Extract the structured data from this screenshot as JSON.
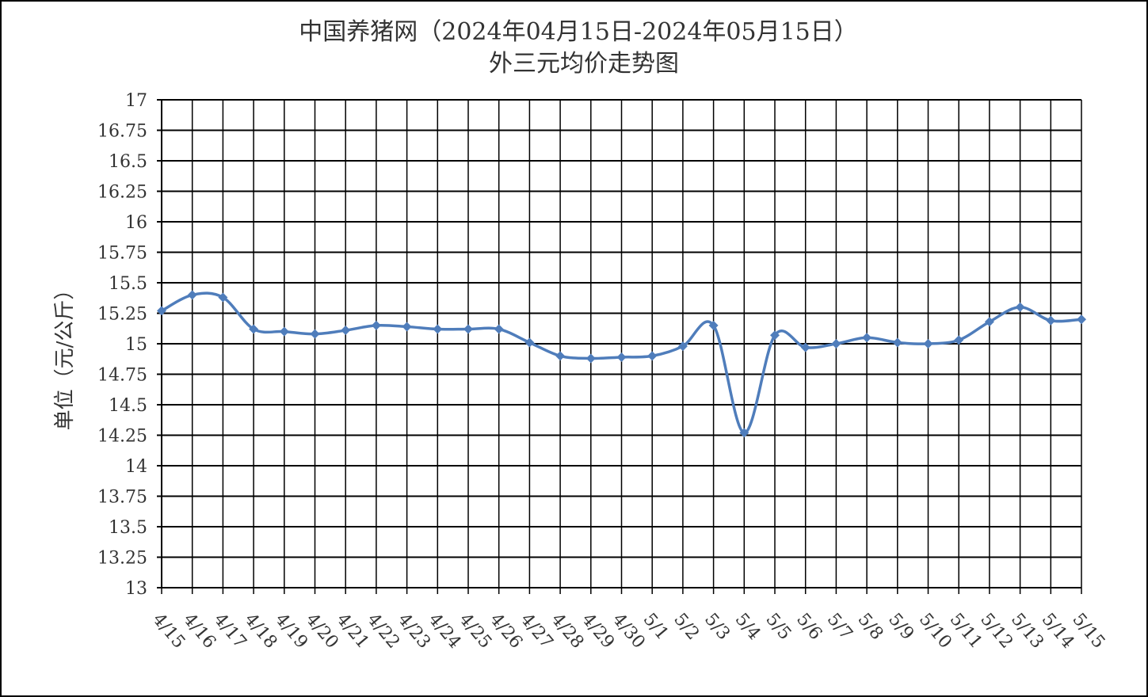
{
  "chart_data": {
    "type": "line",
    "title": "中国养猪网（2024年04月15日-2024年05月15日）",
    "subtitle": "外三元均价走势图",
    "y_label": "单位（元/公斤）",
    "categories": [
      "4/15",
      "4/16",
      "4/17",
      "4/18",
      "4/19",
      "4/20",
      "4/21",
      "4/22",
      "4/23",
      "4/24",
      "4/25",
      "4/26",
      "4/27",
      "4/28",
      "4/29",
      "4/30",
      "5/1",
      "5/2",
      "5/3",
      "5/4",
      "5/5",
      "5/6",
      "5/7",
      "5/8",
      "5/9",
      "5/10",
      "5/11",
      "5/12",
      "5/13",
      "5/14",
      "5/15"
    ],
    "series": [
      {
        "name": "外三元均价",
        "color": "#4f7dbb",
        "values": [
          15.27,
          15.4,
          15.38,
          15.12,
          15.1,
          15.08,
          15.11,
          15.15,
          15.14,
          15.12,
          15.12,
          15.12,
          15.01,
          14.9,
          14.88,
          14.89,
          14.9,
          14.98,
          15.15,
          14.27,
          15.07,
          14.97,
          15.0,
          15.05,
          15.01,
          15.0,
          15.03,
          15.18,
          15.3,
          15.19,
          15.2
        ]
      }
    ],
    "ylim": [
      13,
      17
    ],
    "yticks": [
      13,
      13.25,
      13.5,
      13.75,
      14,
      14.25,
      14.5,
      14.75,
      15,
      15.25,
      15.5,
      15.75,
      16,
      16.25,
      16.5,
      16.75,
      17
    ],
    "grid": true,
    "legend": false
  }
}
